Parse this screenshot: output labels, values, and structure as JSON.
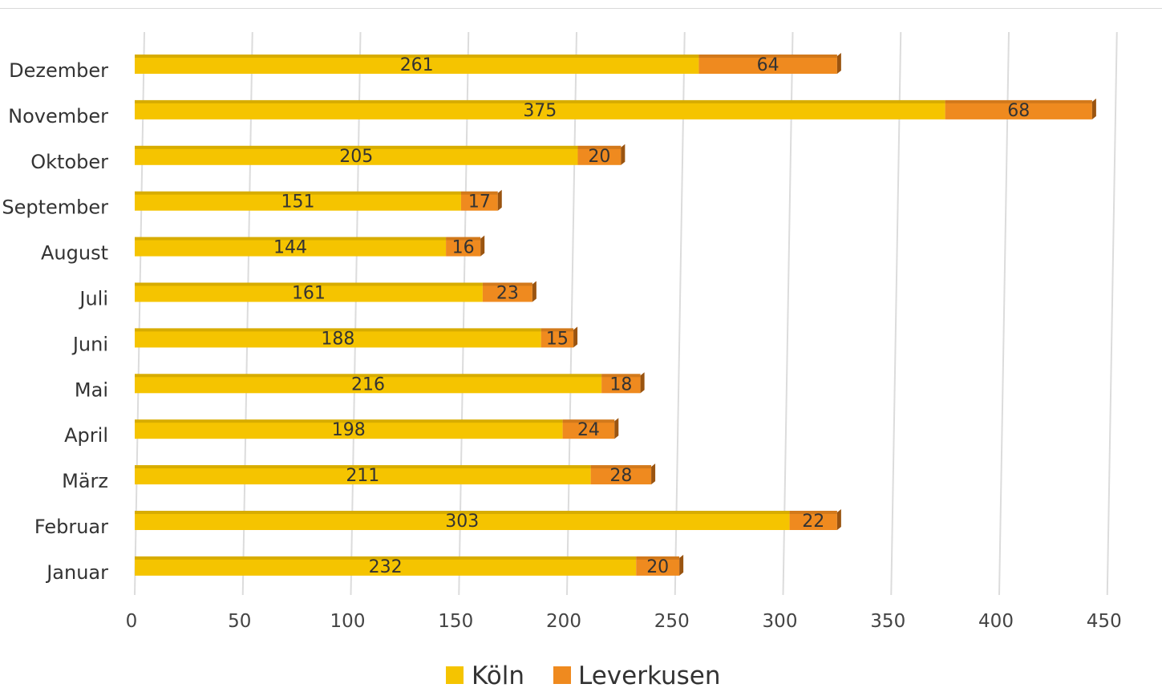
{
  "chart_data": {
    "type": "bar",
    "orientation": "horizontal",
    "stacked": true,
    "categories": [
      "Dezember",
      "November",
      "Oktober",
      "September",
      "August",
      "Juli",
      "Juni",
      "Mai",
      "April",
      "März",
      "Februar",
      "Januar"
    ],
    "series": [
      {
        "name": "Köln",
        "color": "#f5c400",
        "values": [
          261,
          375,
          205,
          151,
          144,
          161,
          188,
          216,
          198,
          211,
          303,
          232
        ]
      },
      {
        "name": "Leverkusen",
        "color": "#ef8a1f",
        "values": [
          64,
          68,
          20,
          17,
          16,
          23,
          15,
          18,
          24,
          28,
          22,
          20
        ]
      }
    ],
    "xlim": [
      0,
      450
    ],
    "x_ticks": [
      "0",
      "50",
      "100",
      "150",
      "200",
      "250",
      "300",
      "350",
      "400",
      "450"
    ],
    "grid": "vertical",
    "legend_position": "bottom"
  }
}
